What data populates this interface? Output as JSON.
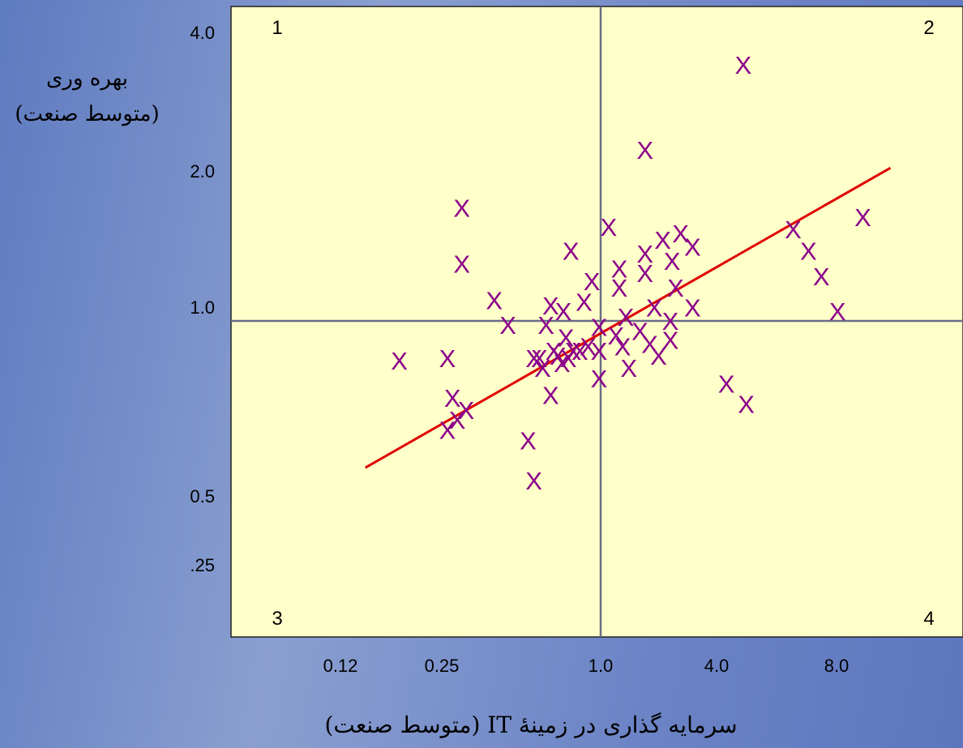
{
  "chart_data": {
    "type": "scatter",
    "title": "",
    "ylabel_line1": "بهره وری",
    "ylabel_line2": "(متوسط صنعت)",
    "xlabel": "سرمایه گذاری در زمینهٔ IT (متوسط صنعت)",
    "x_ticks": [
      "0.12",
      "0.25",
      "1.0",
      "4.0",
      "8.0"
    ],
    "y_ticks": [
      "4.0",
      "2.0",
      "1.0",
      "0.5",
      ".25"
    ],
    "quadrant_labels": [
      "1",
      "2",
      "3",
      "4"
    ],
    "grid": false,
    "legend": "none",
    "colors": {
      "points": "#8b008b",
      "trend_line": "#e00000",
      "plot_bg": "#ffffc9",
      "divider": "#6b6b8a"
    },
    "trend_line": {
      "x": [
        0.06,
        32.0
      ],
      "y": [
        0.48,
        2.15
      ]
    },
    "points": [
      {
        "x": 0.09,
        "y": 0.82
      },
      {
        "x": 0.16,
        "y": 0.83
      },
      {
        "x": 0.17,
        "y": 0.68
      },
      {
        "x": 0.16,
        "y": 0.58
      },
      {
        "x": 0.18,
        "y": 0.61
      },
      {
        "x": 0.2,
        "y": 0.64
      },
      {
        "x": 0.19,
        "y": 1.76
      },
      {
        "x": 0.19,
        "y": 1.33
      },
      {
        "x": 0.28,
        "y": 1.11
      },
      {
        "x": 0.33,
        "y": 0.98
      },
      {
        "x": 0.42,
        "y": 0.55
      },
      {
        "x": 0.45,
        "y": 0.45
      },
      {
        "x": 0.45,
        "y": 0.83
      },
      {
        "x": 0.48,
        "y": 0.83
      },
      {
        "x": 0.5,
        "y": 0.79
      },
      {
        "x": 0.52,
        "y": 0.98
      },
      {
        "x": 0.55,
        "y": 0.69
      },
      {
        "x": 0.55,
        "y": 1.08
      },
      {
        "x": 0.57,
        "y": 0.86
      },
      {
        "x": 0.6,
        "y": 0.84
      },
      {
        "x": 0.63,
        "y": 0.81
      },
      {
        "x": 0.64,
        "y": 1.05
      },
      {
        "x": 0.66,
        "y": 0.92
      },
      {
        "x": 0.68,
        "y": 0.83
      },
      {
        "x": 0.7,
        "y": 1.42
      },
      {
        "x": 0.72,
        "y": 0.86
      },
      {
        "x": 0.78,
        "y": 0.86
      },
      {
        "x": 0.82,
        "y": 1.1
      },
      {
        "x": 0.86,
        "y": 0.88
      },
      {
        "x": 0.9,
        "y": 1.22
      },
      {
        "x": 0.98,
        "y": 0.97
      },
      {
        "x": 0.98,
        "y": 0.86
      },
      {
        "x": 0.98,
        "y": 0.75
      },
      {
        "x": 1.1,
        "y": 1.6
      },
      {
        "x": 1.2,
        "y": 0.93
      },
      {
        "x": 1.25,
        "y": 1.18
      },
      {
        "x": 1.25,
        "y": 1.3
      },
      {
        "x": 1.3,
        "y": 0.88
      },
      {
        "x": 1.35,
        "y": 1.02
      },
      {
        "x": 1.4,
        "y": 0.79
      },
      {
        "x": 1.6,
        "y": 0.95
      },
      {
        "x": 1.7,
        "y": 1.27
      },
      {
        "x": 1.7,
        "y": 1.4
      },
      {
        "x": 1.7,
        "y": 2.35
      },
      {
        "x": 1.8,
        "y": 0.89
      },
      {
        "x": 1.9,
        "y": 1.07
      },
      {
        "x": 2.0,
        "y": 0.84
      },
      {
        "x": 2.1,
        "y": 1.5
      },
      {
        "x": 2.3,
        "y": 1.0
      },
      {
        "x": 2.3,
        "y": 0.91
      },
      {
        "x": 2.35,
        "y": 1.35
      },
      {
        "x": 2.45,
        "y": 1.18
      },
      {
        "x": 2.6,
        "y": 1.55
      },
      {
        "x": 3.0,
        "y": 1.45
      },
      {
        "x": 3.0,
        "y": 1.07
      },
      {
        "x": 4.5,
        "y": 0.73
      },
      {
        "x": 5.5,
        "y": 3.6
      },
      {
        "x": 5.7,
        "y": 0.66
      },
      {
        "x": 10.0,
        "y": 1.58
      },
      {
        "x": 12.0,
        "y": 1.42
      },
      {
        "x": 14.0,
        "y": 1.25
      },
      {
        "x": 17.0,
        "y": 1.05
      },
      {
        "x": 23.0,
        "y": 1.68
      }
    ]
  }
}
